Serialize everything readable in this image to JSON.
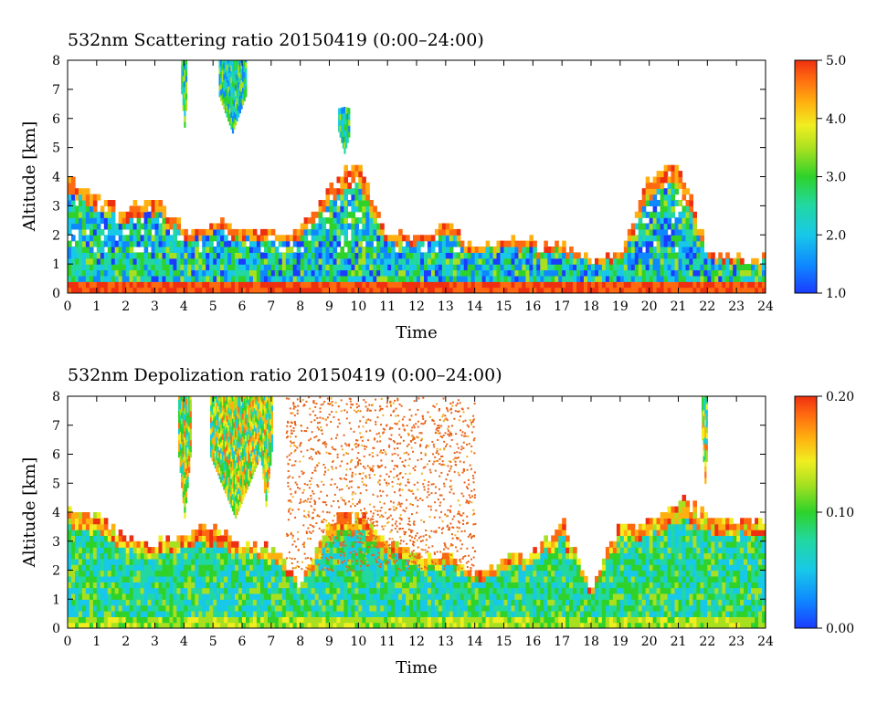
{
  "chart_data": [
    {
      "type": "heatmap",
      "title": "532nm Scattering ratio  20150419 (0:00–24:00)",
      "xlabel": "Time",
      "ylabel": "Altitude [km]",
      "xlim": [
        0,
        24
      ],
      "ylim": [
        0,
        8
      ],
      "x_ticks": [
        "0",
        "1",
        "2",
        "3",
        "4",
        "5",
        "6",
        "7",
        "8",
        "9",
        "10",
        "11",
        "12",
        "13",
        "14",
        "15",
        "16",
        "17",
        "18",
        "19",
        "20",
        "21",
        "22",
        "23",
        "24"
      ],
      "y_ticks": [
        "0",
        "1",
        "2",
        "3",
        "4",
        "5",
        "6",
        "7",
        "8"
      ],
      "colorbar": {
        "min": 1.0,
        "max": 5.0,
        "ticks": [
          "1.0",
          "2.0",
          "3.0",
          "4.0",
          "5.0"
        ]
      },
      "cloud_top_km": [
        3.8,
        3.3,
        2.7,
        3.2,
        2.1,
        2.3,
        2.2,
        2.0,
        2.0,
        3.6,
        4.4,
        1.8,
        1.9,
        2.2,
        1.5,
        1.7,
        1.6,
        1.5,
        1.1,
        1.3,
        3.9,
        4.4,
        1.4,
        1.2,
        1.1
      ],
      "features": [
        {
          "name": "cirrus",
          "t_start": 3.9,
          "t_end": 4.1,
          "z_bottom": 5.7,
          "z_top": 8.0
        },
        {
          "name": "cirrus",
          "t_start": 5.2,
          "t_end": 6.1,
          "z_bottom": 5.5,
          "z_top": 8.0
        },
        {
          "name": "cirrus",
          "t_start": 9.3,
          "t_end": 9.7,
          "z_bottom": 4.8,
          "z_top": 6.3
        }
      ]
    },
    {
      "type": "heatmap",
      "title": "532nm Depolization ratio  20150419 (0:00–24:00)",
      "xlabel": "Time",
      "ylabel": "Altitude [km]",
      "xlim": [
        0,
        24
      ],
      "ylim": [
        0,
        8
      ],
      "x_ticks": [
        "0",
        "1",
        "2",
        "3",
        "4",
        "5",
        "6",
        "7",
        "8",
        "9",
        "10",
        "11",
        "12",
        "13",
        "14",
        "15",
        "16",
        "17",
        "18",
        "19",
        "20",
        "21",
        "22",
        "23",
        "24"
      ],
      "y_ticks": [
        "0",
        "1",
        "2",
        "3",
        "4",
        "5",
        "6",
        "7",
        "8"
      ],
      "colorbar": {
        "min": 0.0,
        "max": 0.2,
        "ticks": [
          "0.00",
          "0.10",
          "0.20"
        ]
      },
      "cloud_top_km": [
        3.9,
        3.8,
        3.0,
        2.8,
        3.2,
        3.3,
        2.9,
        2.6,
        1.5,
        3.6,
        3.8,
        3.0,
        2.4,
        2.5,
        1.8,
        2.3,
        2.4,
        3.6,
        1.2,
        3.4,
        3.5,
        4.3,
        3.8,
        3.6,
        3.5
      ],
      "features": [
        {
          "name": "cirrus",
          "t_start": 3.8,
          "t_end": 4.2,
          "z_bottom": 3.8,
          "z_top": 8.0
        },
        {
          "name": "cirrus",
          "t_start": 4.9,
          "t_end": 6.6,
          "z_bottom": 3.8,
          "z_top": 8.0
        },
        {
          "name": "cirrus",
          "t_start": 6.6,
          "t_end": 7.0,
          "z_bottom": 4.2,
          "z_top": 8.0
        },
        {
          "name": "cirrus",
          "t_start": 21.8,
          "t_end": 22.0,
          "z_bottom": 5.0,
          "z_top": 8.0
        }
      ]
    }
  ]
}
